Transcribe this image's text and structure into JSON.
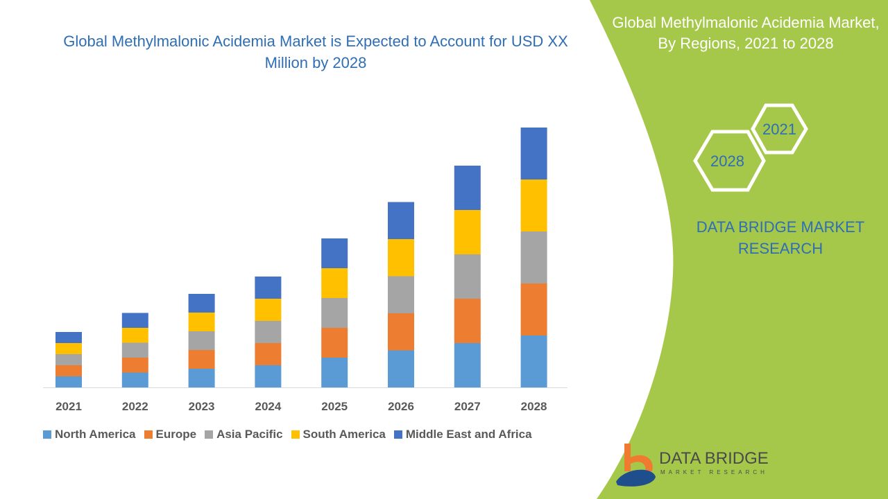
{
  "title": "Global Methylmalonic Acidemia Market is Expected to Account for USD XX Million by 2028",
  "side_panel": {
    "title": "Global Methylmalonic Acidemia Market, By Regions, 2021 to 2028",
    "hex_start": "2021",
    "hex_end": "2028",
    "brand": "DATA BRIDGE MARKET RESEARCH",
    "logo_text": "DATA BRIDGE",
    "logo_sub": "MARKET RESEARCH",
    "panel_color": "#a6c84a"
  },
  "chart_data": {
    "type": "bar",
    "stacked": true,
    "categories": [
      "2021",
      "2022",
      "2023",
      "2024",
      "2025",
      "2026",
      "2027",
      "2028"
    ],
    "series": [
      {
        "name": "North America",
        "color": "#5b9bd5",
        "values": [
          3.2,
          4.3,
          5.4,
          6.4,
          8.6,
          10.7,
          12.8,
          15
        ]
      },
      {
        "name": "Europe",
        "color": "#ed7d31",
        "values": [
          3.2,
          4.3,
          5.4,
          6.4,
          8.6,
          10.7,
          12.8,
          15
        ]
      },
      {
        "name": "Asia Pacific",
        "color": "#a5a5a5",
        "values": [
          3.2,
          4.3,
          5.4,
          6.4,
          8.6,
          10.7,
          12.8,
          15
        ]
      },
      {
        "name": "South America",
        "color": "#ffc000",
        "values": [
          3.2,
          4.3,
          5.4,
          6.4,
          8.6,
          10.7,
          12.8,
          15
        ]
      },
      {
        "name": "Middle East and Africa",
        "color": "#4472c4",
        "values": [
          3.2,
          4.3,
          5.4,
          6.4,
          8.6,
          10.7,
          12.8,
          15
        ]
      }
    ],
    "ylim": [
      0,
      80
    ],
    "grid": false,
    "y_axis_visible": false,
    "legend_position": "bottom"
  }
}
